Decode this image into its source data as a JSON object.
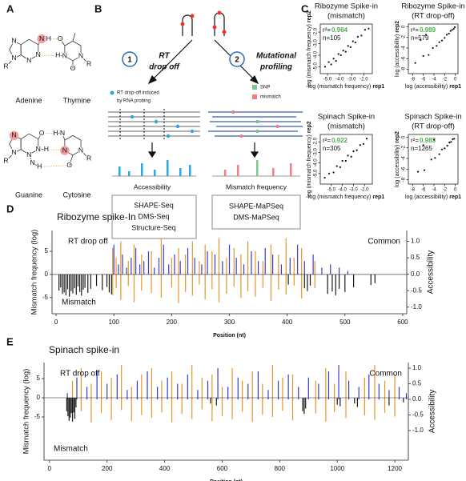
{
  "panel_a": {
    "label": "A",
    "pairs": [
      {
        "left": "Adenine",
        "right": "Thymine",
        "atoms": [
          "N",
          "N",
          "R",
          "N",
          "N",
          "H",
          "N",
          "H",
          "O",
          "N",
          "O",
          "N",
          "R"
        ]
      },
      {
        "left": "Guanine",
        "right": "Cytosine",
        "atoms": [
          "N",
          "N",
          "R",
          "N",
          "O",
          "N",
          "H",
          "N",
          "H",
          "H",
          "N",
          "N",
          "O",
          "N",
          "R"
        ]
      }
    ]
  },
  "panel_b": {
    "label": "B",
    "branches": [
      {
        "number": 1,
        "method": [
          "RT",
          "drop off"
        ],
        "legend": [
          "RT drop-off induced",
          "by RNA probing"
        ],
        "readout": "Accessibility",
        "protocols": [
          "SHAPE-Seq",
          "DMS-Seq",
          "Structure-Seq"
        ]
      },
      {
        "number": 2,
        "method": [
          "Mutational",
          "profiling"
        ],
        "legend": [
          "SNP",
          "mismatch"
        ],
        "readout": "Mismatch frequency",
        "protocols": [
          "SHAPE-MaPSeq",
          "DMS-MaPSeq"
        ]
      }
    ]
  },
  "panel_c_label": "C",
  "panel_d_label": "D",
  "panel_e_label": "E",
  "chart_data": [
    {
      "type": "scatter",
      "title": "Ribozyme Spike-in",
      "subtitle": "(mismatch)",
      "r2_label": "r²=",
      "r2": 0.964,
      "n_label": "n=",
      "n": 105,
      "r2_color": "#4caf50",
      "color": "#111",
      "x_label": "log (mismatch frequency)",
      "x_label_rep": "rep1",
      "y_label": "log (mismatch frequency)",
      "y_label_rep": "rep2",
      "xlim": [
        -5.6,
        -1.3
      ],
      "ylim": [
        -5.6,
        -1.3
      ],
      "xticks": [
        {
          "value": -5,
          "label": "-5.0"
        },
        {
          "value": -4,
          "label": "-4.0"
        },
        {
          "value": -3,
          "label": "-3.0"
        },
        {
          "value": -2,
          "label": "-2.0"
        }
      ],
      "yticks": [
        {
          "value": -5,
          "label": "-5.0"
        },
        {
          "value": -4,
          "label": "-4.0"
        },
        {
          "value": -3,
          "label": "-3.0"
        },
        {
          "value": -2,
          "label": "-2.0"
        }
      ],
      "x": [
        -5.2,
        -4.9,
        -4.7,
        -4.5,
        -4.3,
        -4.1,
        -3.9,
        -3.7,
        -3.5,
        -3.3,
        -3.1,
        -2.9,
        -2.7,
        -2.5,
        -2.2,
        -1.9,
        -1.6
      ],
      "y": [
        -5.0,
        -4.6,
        -4.8,
        -4.3,
        -4.5,
        -3.9,
        -4.0,
        -3.6,
        -3.7,
        -3.2,
        -3.3,
        -2.8,
        -2.9,
        -2.4,
        -2.3,
        -1.8,
        -1.7
      ]
    },
    {
      "type": "scatter",
      "title": "Ribozyme Spike-in",
      "subtitle": "(RT drop-off)",
      "r2_label": "r²=",
      "r2": 0.989,
      "n_label": "n=",
      "n": 579,
      "r2_color": "#4caf50",
      "color": "#111",
      "x_label": "log (accessibility)",
      "x_label_rep": "rep1",
      "y_label": "log (accessibility)",
      "y_label_rep": "rep2",
      "xlim": [
        -8.8,
        0.5
      ],
      "ylim": [
        -8.8,
        0.5
      ],
      "xticks": [
        -8,
        -6,
        -4,
        -2,
        0
      ],
      "yticks": [
        -8,
        -6,
        -4,
        -2,
        0
      ],
      "x": [
        -7.5,
        -6,
        -5,
        -4.2,
        -3.5,
        -3,
        -2.5,
        -2,
        -1.6,
        -1.2,
        -0.9,
        -0.6,
        -0.3,
        -0.1,
        -6.5,
        -5.5
      ],
      "y": [
        -6.8,
        -5.5,
        -5.3,
        -4.0,
        -3.6,
        -2.9,
        -2.6,
        -2.1,
        -1.5,
        -1.3,
        -0.8,
        -0.6,
        -0.4,
        -0.1,
        -2.5,
        -1.5
      ]
    },
    {
      "type": "scatter",
      "title": "Spinach Spike-in",
      "subtitle": "(mismatch)",
      "r2_label": "r²=",
      "r2": 0.922,
      "n_label": "n=",
      "n": 305,
      "r2_color": "#4caf50",
      "color": "#111",
      "x_label": "log (mismatch frequency)",
      "x_label_rep": "rep1",
      "y_label": "log (mismatch frequency)",
      "y_label_rep": "rep2",
      "xlim": [
        -6,
        -1.3
      ],
      "ylim": [
        -6,
        -1.3
      ],
      "xticks": [
        {
          "value": -5,
          "label": "-5.0"
        },
        {
          "value": -4,
          "label": "-4.0"
        },
        {
          "value": -3,
          "label": "-3.0"
        },
        {
          "value": -2,
          "label": "-2.0"
        }
      ],
      "yticks": [
        {
          "value": -5,
          "label": "-5.0"
        },
        {
          "value": -4,
          "label": "-4.0"
        },
        {
          "value": -3,
          "label": "-3.0"
        },
        {
          "value": -2,
          "label": "-2.0"
        }
      ],
      "x": [
        -5.6,
        -5.2,
        -4.8,
        -4.5,
        -4.2,
        -4.0,
        -3.7,
        -3.5,
        -3.2,
        -3.0,
        -2.7,
        -2.4,
        -2.1,
        -1.8
      ],
      "y": [
        -5.4,
        -5.0,
        -4.9,
        -4.3,
        -4.4,
        -3.8,
        -3.8,
        -3.3,
        -3.4,
        -2.9,
        -2.8,
        -2.3,
        -2.2,
        -1.7
      ]
    },
    {
      "type": "scatter",
      "title": "Spinach Spike-in",
      "subtitle": "(RT drop-off)",
      "r2_label": "r²=",
      "r2": 0.983,
      "n_label": "n=",
      "n": 1265,
      "r2_color": "#4caf50",
      "color": "#111",
      "x_label": "log (accessibility)",
      "x_label_rep": "rep1",
      "y_label": "log (accessibility)",
      "y_label_rep": "rep2",
      "xlim": [
        -8.8,
        0.5
      ],
      "ylim": [
        -8.8,
        0.5
      ],
      "xticks": [
        -8,
        -6,
        -4,
        -2,
        0
      ],
      "yticks": [
        -8,
        -6,
        -4,
        -2,
        0
      ],
      "x": [
        -7,
        -5.8,
        -4.5,
        -3.8,
        -3,
        -2.5,
        -2,
        -1.5,
        -1.1,
        -0.8,
        -0.5,
        -0.2,
        -6,
        -4
      ],
      "y": [
        -6.5,
        -6.2,
        -4.2,
        -3.9,
        -3.2,
        -2.3,
        -2.1,
        -1.6,
        -1.0,
        -0.9,
        -0.4,
        -0.3,
        -1.5,
        -0.5
      ]
    },
    {
      "type": "bar",
      "title": "Ribozyme spike-In",
      "x_label": "Position (nt)",
      "y_label": "Mismatch frequency (log)",
      "y2_label": "Accessibility",
      "y2_color": "#3a3ad6",
      "xlim": [
        -7,
        607
      ],
      "xticks": [
        0,
        100,
        200,
        300,
        400,
        500,
        600
      ],
      "ylim": [
        -8.5,
        9.5
      ],
      "yticks": [
        -5,
        0,
        5
      ],
      "y2lim": [
        -1.2,
        1.33
      ],
      "y2ticks": [
        {
          "value": -1,
          "label": "-1.0"
        },
        {
          "value": -0.5,
          "label": "-0.5"
        },
        {
          "value": 0,
          "label": "0.0"
        },
        {
          "value": 0.5,
          "label": "0.5"
        },
        {
          "value": 1,
          "label": "1.0"
        }
      ],
      "series": [
        {
          "name": "RT drop off",
          "color": "#3a3ad6",
          "axis": "y2",
          "x": [
            100,
            108,
            115,
            122,
            130,
            138,
            145,
            152,
            160,
            170,
            178,
            186,
            195,
            205,
            215,
            228,
            240,
            252,
            262,
            275,
            288,
            300,
            312,
            325,
            338,
            350,
            362,
            375,
            390,
            405,
            418,
            430,
            445,
            460,
            475,
            490,
            505
          ],
          "values": [
            0.9,
            0.3,
            0.6,
            0.2,
            0.5,
            0.8,
            0.3,
            0.4,
            0.7,
            0.2,
            0.5,
            0.9,
            0.3,
            0.6,
            0.4,
            0.8,
            0.5,
            0.3,
            0.7,
            0.6,
            0.4,
            0.9,
            0.5,
            0.3,
            0.7,
            0.4,
            0.8,
            0.6,
            0.3,
            0.5,
            0.9,
            0.4,
            0.6,
            0.2,
            0.3,
            0.2,
            0.1
          ]
        },
        {
          "name": "Common",
          "color": "#e3962b",
          "x": [
            98,
            104,
            112,
            125,
            135,
            148,
            165,
            182,
            200,
            212,
            224,
            236,
            248,
            258,
            270,
            282,
            295,
            308,
            320,
            332,
            345,
            358,
            372,
            385,
            398,
            412,
            425,
            448
          ],
          "values": [
            -4.5,
            -3.0,
            -5.5,
            -2.5,
            -6.0,
            -3.5,
            -4.0,
            -5.0,
            -2.8,
            -6.2,
            -3.8,
            -4.6,
            -2.2,
            -5.4,
            -3.2,
            -6.0,
            -4.2,
            -2.6,
            -5.1,
            -3.6,
            -4.8,
            -2.9,
            -5.7,
            -3.3,
            -4.4,
            -2.4,
            -5.2,
            -3.0
          ],
          "accessibility": [
            0.8,
            0.5,
            1.0,
            0.4,
            0.9,
            0.6,
            0.7,
            1.1,
            0.5,
            0.8,
            0.6,
            1.0,
            0.4,
            0.9,
            0.7,
            1.1,
            0.5,
            0.8,
            0.6,
            1.0,
            0.7,
            0.4,
            0.9,
            0.6,
            1.1,
            0.5,
            0.8,
            0.4
          ]
        },
        {
          "name": "Mismatch",
          "color": "#1a1a1a",
          "x": [
            5,
            8,
            11,
            14,
            17,
            20,
            23,
            26,
            29,
            32,
            35,
            38,
            41,
            44,
            47,
            50,
            55,
            60,
            70,
            80,
            88,
            92,
            96,
            402,
            430,
            435,
            440,
            470,
            478,
            484,
            490,
            500,
            515,
            545,
            552
          ],
          "values": [
            -3.5,
            -2.8,
            -4.2,
            -3.9,
            -4.5,
            -3.2,
            -4.8,
            -3.6,
            -4.1,
            -3.0,
            -4.4,
            -2.6,
            -3.8,
            -4.6,
            -3.3,
            -2.9,
            -4.0,
            -3.1,
            -2.5,
            -3.4,
            -2.7,
            -3.9,
            -4.3,
            -2.2,
            -3.0,
            -3.6,
            -2.4,
            -4.2,
            -3.7,
            -4.5,
            -3.1,
            -3.8,
            -2.8,
            -2.3,
            -1.9
          ]
        }
      ]
    },
    {
      "type": "bar",
      "title": "Spinach spike-in",
      "x_label": "Position (nt)",
      "y_label": "Mismatch frequency (log)",
      "y2_label": "Accessibility",
      "y2_color": "#3a3ad6",
      "xlim": [
        -19,
        1247
      ],
      "xticks": [
        0,
        200,
        400,
        600,
        800,
        1000,
        1200
      ],
      "ylim": [
        -16.25,
        9.17
      ],
      "yticks": [
        -5,
        0,
        5
      ],
      "y2lim": [
        -1.95,
        1.18
      ],
      "y2ticks": [
        {
          "value": -1,
          "label": "-1.0"
        },
        {
          "value": -0.5,
          "label": "-0.5"
        },
        {
          "value": 0,
          "label": "0.0"
        },
        {
          "value": 0.5,
          "label": "0.5"
        },
        {
          "value": 1,
          "label": "1.0"
        }
      ],
      "series": [
        {
          "name": "RT drop off",
          "color": "#3a3ad6",
          "axis": "y2",
          "x": [
            62,
            95,
            130,
            165,
            200,
            235,
            270,
            305,
            340,
            375,
            410,
            445,
            480,
            515,
            550,
            585,
            620,
            655,
            690,
            725,
            760,
            795,
            830,
            865,
            900,
            935,
            970,
            1005,
            1040,
            1075,
            1110,
            1145,
            1180,
            1215,
            1240
          ],
          "values": [
            0.2,
            0.7,
            0.4,
            0.9,
            0.5,
            0.8,
            0.3,
            0.6,
            0.9,
            0.4,
            0.7,
            0.5,
            0.8,
            0.3,
            0.6,
            1.0,
            0.4,
            0.7,
            0.5,
            0.9,
            0.3,
            0.6,
            0.8,
            0.4,
            0.7,
            0.5,
            0.9,
            1.1,
            0.6,
            0.4,
            0.8,
            0.5,
            0.3,
            0.4,
            0.2
          ]
        },
        {
          "name": "Common",
          "color": "#e3962b",
          "x": [
            80,
            110,
            145,
            180,
            215,
            250,
            285,
            320,
            355,
            390,
            425,
            460,
            495,
            530,
            565,
            600,
            635,
            670,
            705,
            740,
            775,
            810,
            845,
            925,
            960,
            990,
            1030,
            1095,
            1130,
            1165,
            1200
          ],
          "values": [
            -5.0,
            -3.5,
            -6.5,
            -4.0,
            -5.8,
            -3.2,
            -6.0,
            -4.5,
            -5.2,
            -3.8,
            -6.4,
            -4.2,
            -5.5,
            -3.0,
            -6.1,
            -4.8,
            -5.6,
            -3.6,
            -6.3,
            -4.4,
            -5.0,
            -3.4,
            -5.9,
            -4.1,
            -6.2,
            -3.7,
            -5.3,
            -4.6,
            -5.7,
            -3.9,
            -4.9
          ],
          "accessibility": [
            0.6,
            1.0,
            0.5,
            0.9,
            0.7,
            1.1,
            0.4,
            0.8,
            1.0,
            0.6,
            0.9,
            0.5,
            1.1,
            0.7,
            0.8,
            0.4,
            1.0,
            0.6,
            0.9,
            0.5,
            1.1,
            0.7,
            0.8,
            0.6,
            1.0,
            0.5,
            0.9,
            0.7,
            1.1,
            0.6,
            0.8
          ]
        },
        {
          "name": "Mismatch",
          "color": "#1a1a1a",
          "x": [
            60,
            64,
            68,
            72,
            76,
            80,
            84,
            88,
            92,
            560,
            580,
            880,
            885,
            890,
            1000,
            1010,
            1060,
            1070,
            1180,
            1230
          ],
          "values": [
            -3.5,
            -4.8,
            -6.0,
            -5.2,
            -4.0,
            -6.2,
            -3.8,
            -5.5,
            -2.5,
            -1.5,
            -2.0,
            -3.5,
            -4.2,
            -2.8,
            -1.8,
            -2.2,
            -1.5,
            -2.4,
            -2.0,
            -1.2
          ]
        }
      ]
    }
  ]
}
